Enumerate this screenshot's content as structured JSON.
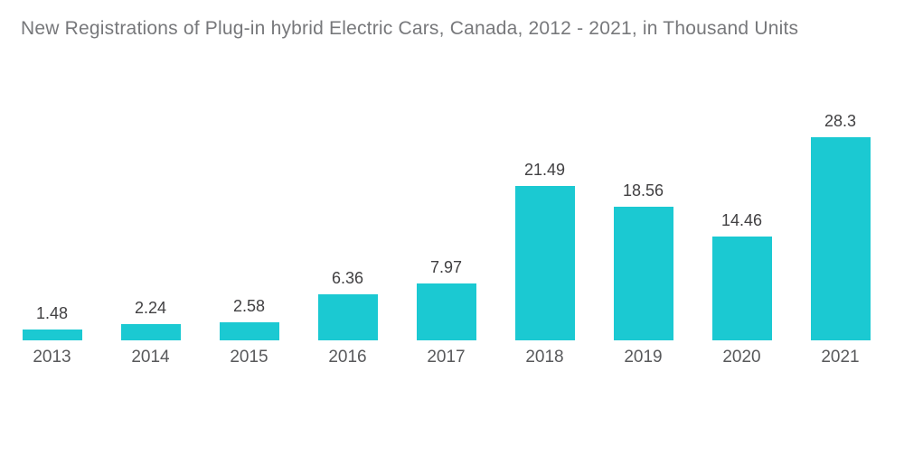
{
  "header": {
    "title": "New Registrations of Plug-in hybrid Electric Cars, Canada, 2012 - 2021, in Thousand Units"
  },
  "chart_data": {
    "type": "bar",
    "title": "New Registrations of Plug-in hybrid Electric Cars, Canada, 2012 - 2021, in Thousand Units",
    "categories": [
      "2013",
      "2014",
      "2015",
      "2016",
      "2017",
      "2018",
      "2019",
      "2020",
      "2021"
    ],
    "values": [
      1.48,
      2.24,
      2.58,
      6.36,
      7.97,
      21.49,
      18.56,
      14.46,
      28.3
    ],
    "value_labels": [
      "1.48",
      "2.24",
      "2.58",
      "6.36",
      "7.97",
      "21.49",
      "18.56",
      "14.46",
      "28.3"
    ],
    "unit": "Thousand Units",
    "xlabel": "",
    "ylabel": "",
    "ylim": [
      0,
      28.5
    ],
    "grid": false,
    "legend": false,
    "axes_visible": false,
    "bar_color": "#1bc9d2",
    "value_label_color": "#414042",
    "category_label_color": "#58595b",
    "title_color": "#77787b",
    "background_color": "#ffffff"
  }
}
